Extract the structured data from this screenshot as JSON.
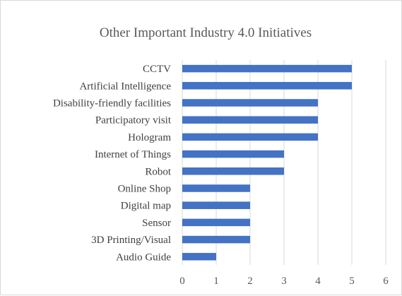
{
  "chart_data": {
    "type": "bar",
    "orientation": "horizontal",
    "title": "Other Important Industry 4.0 Initiatives",
    "categories": [
      "CCTV",
      "Artificial Intelligence",
      "Disability-friendly facilities",
      "Participatory visit",
      "Hologram",
      "Internet of Things",
      "Robot",
      "Online Shop",
      "Digital map",
      "Sensor",
      "3D Printing/Visual",
      "Audio Guide"
    ],
    "values": [
      5,
      5,
      4,
      4,
      4,
      3,
      3,
      2,
      2,
      2,
      2,
      1
    ],
    "xlim": [
      0,
      6
    ],
    "xticks": [
      "0",
      "1",
      "2",
      "3",
      "4",
      "5",
      "6"
    ],
    "grid": "vertical",
    "legend": "none",
    "colors": {
      "bar": "#4472c4",
      "grid": "#d9d9d9"
    }
  }
}
